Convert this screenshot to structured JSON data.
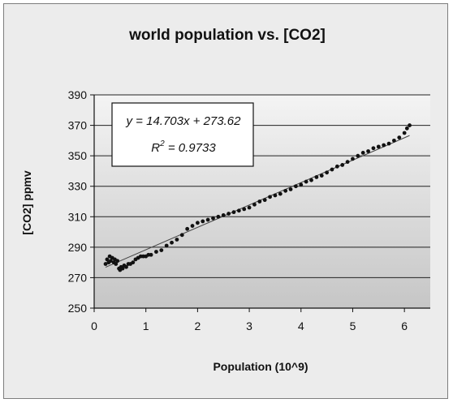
{
  "chart_data": {
    "type": "scatter",
    "title": "world population vs. [CO2]",
    "xlabel": "Population (10^9)",
    "ylabel": "[CO2] ppmv",
    "xlim": [
      0,
      6.5
    ],
    "ylim": [
      250,
      390
    ],
    "x_ticks": [
      "0",
      "1",
      "2",
      "3",
      "4",
      "5",
      "6"
    ],
    "y_ticks": [
      "250",
      "270",
      "290",
      "310",
      "330",
      "350",
      "370",
      "390"
    ],
    "grid": "horizontal",
    "legend": "none",
    "series": [
      {
        "x": [
          0.22,
          0.25,
          0.28,
          0.3,
          0.32,
          0.35,
          0.38,
          0.4,
          0.42,
          0.45,
          0.48,
          0.5,
          0.52,
          0.55,
          0.58,
          0.62,
          0.66,
          0.7,
          0.75,
          0.8,
          0.85,
          0.9,
          0.95,
          1.0,
          1.05,
          1.1,
          1.2,
          1.3,
          1.4,
          1.5,
          1.6,
          1.7,
          1.8,
          1.9,
          2.0,
          2.1,
          2.2,
          2.3,
          2.4,
          2.5,
          2.6,
          2.7,
          2.8,
          2.9,
          3.0,
          3.1,
          3.2,
          3.3,
          3.4,
          3.5,
          3.6,
          3.7,
          3.8,
          3.9,
          4.0,
          4.1,
          4.2,
          4.3,
          4.4,
          4.5,
          4.6,
          4.7,
          4.8,
          4.9,
          5.0,
          5.1,
          5.2,
          5.3,
          5.4,
          5.5,
          5.6,
          5.7,
          5.8,
          5.9,
          6.0,
          6.05,
          6.1
        ],
        "y": [
          279,
          282,
          280,
          284,
          281,
          283,
          280,
          282,
          279,
          281,
          276,
          275,
          277,
          276,
          278,
          277,
          279,
          279,
          280,
          282,
          283,
          284,
          284,
          284,
          285,
          285,
          287,
          288,
          291,
          293,
          295,
          298,
          302,
          304,
          306,
          307,
          308,
          309,
          310,
          311,
          312,
          313,
          314,
          315,
          316,
          318,
          320,
          321,
          323,
          324,
          325,
          327,
          328,
          330,
          331,
          333,
          334,
          336,
          337,
          339,
          341,
          343,
          344,
          346,
          348,
          350,
          352,
          353,
          355,
          356,
          357,
          358,
          360,
          362,
          365,
          368,
          370
        ]
      }
    ],
    "trendline": {
      "slope": 14.703,
      "intercept": 273.62
    },
    "annotations": {
      "equation": "y = 14.703x + 273.62",
      "r2_prefix": "R",
      "r2_sup": "2",
      "r2_value": " = 0.9733"
    },
    "colors": {
      "markers": "#111111",
      "trendline": "#444444",
      "gridlines": "#222222",
      "plot_background_top": "#f4f4f4",
      "plot_background_bottom": "#c6c6c6",
      "chart_background": "#ececec"
    }
  }
}
